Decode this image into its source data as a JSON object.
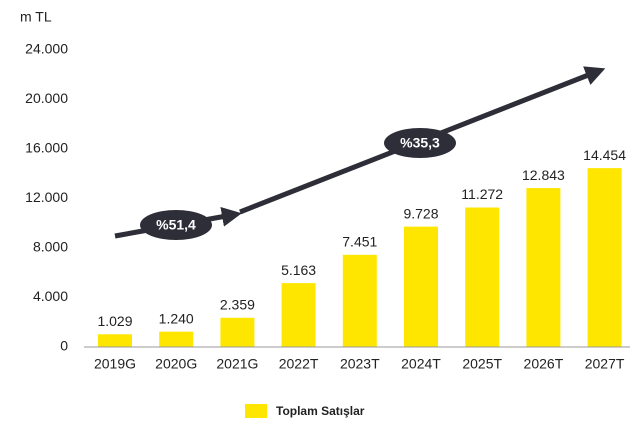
{
  "chart_data": {
    "type": "bar",
    "y_axis_label": "m TL",
    "categories": [
      "2019G",
      "2020G",
      "2021G",
      "2022T",
      "2023T",
      "2024T",
      "2025T",
      "2026T",
      "2027T"
    ],
    "series": [
      {
        "name": "Toplam Satışlar",
        "color": "#ffe600",
        "values": [
          1029,
          1240,
          2359,
          5163,
          7451,
          9728,
          11272,
          12843,
          14454
        ],
        "value_labels": [
          "1.029",
          "1.240",
          "2.359",
          "5.163",
          "7.451",
          "9.728",
          "11.272",
          "12.843",
          "14.454"
        ]
      }
    ],
    "ylim": [
      0,
      24000
    ],
    "yticks": [
      0,
      {
        "value": 4000,
        "label": "4.000"
      },
      {
        "value": 8000,
        "label": "8.000"
      },
      {
        "value": 12000,
        "label": "12.000"
      },
      {
        "value": 16000,
        "label": "16.000"
      },
      {
        "value": 20000,
        "label": "20.000"
      },
      {
        "value": 24000,
        "label": "24.000"
      }
    ],
    "annotations": [
      "%51,4",
      "%35,3"
    ],
    "legend": "bottom"
  }
}
